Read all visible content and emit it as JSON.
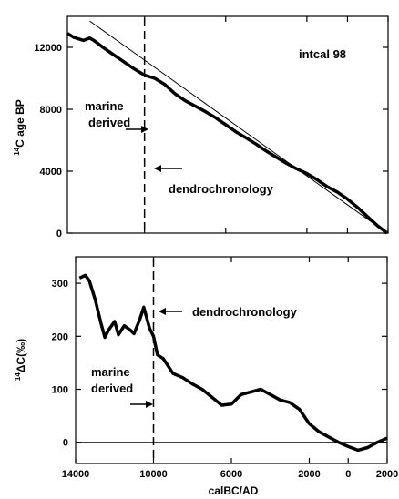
{
  "chart_data": [
    {
      "type": "line",
      "title": "",
      "ylabel": "14C age BP",
      "xlabel": "",
      "xlim": [
        -13800,
        2000
      ],
      "ylim": [
        0,
        14000
      ],
      "xtick_values": [
        -14000,
        -10000,
        -6000,
        -2000,
        0,
        2000
      ],
      "ytick_values": [
        0,
        4000,
        8000,
        12000
      ],
      "ytick_labels": [
        "0",
        "4000",
        "8000",
        "12000"
      ],
      "annotations": {
        "intcal": "intcal 98",
        "marine": [
          "marine",
          "derived"
        ],
        "dendro": "dendrochronology"
      },
      "dashed_x": -10000,
      "series": [
        {
          "name": "",
          "style": "thick",
          "x": [
            -13800,
            -13500,
            -13000,
            -12700,
            -12500,
            -12000,
            -11500,
            -11000,
            -10500,
            -10000,
            -9500,
            -9000,
            -8500,
            -8000,
            -7500,
            -7000,
            -6500,
            -6000,
            -5500,
            -5000,
            -4500,
            -4000,
            -3500,
            -3000,
            -2500,
            -2000,
            -1500,
            -1000,
            -500,
            0,
            500,
            1000,
            1500,
            1950
          ],
          "y": [
            12900,
            12650,
            12450,
            12600,
            12450,
            11950,
            11500,
            11050,
            10600,
            10200,
            10000,
            9600,
            9000,
            8550,
            8200,
            7850,
            7450,
            7000,
            6550,
            6150,
            5750,
            5300,
            4900,
            4500,
            4150,
            3850,
            3450,
            3000,
            2650,
            2200,
            1650,
            1050,
            450,
            0
          ]
        },
        {
          "name": "",
          "style": "thin",
          "x": [
            -12700,
            1950
          ],
          "y": [
            13700,
            0
          ]
        }
      ]
    },
    {
      "type": "line",
      "title": "",
      "ylabel": "14ΔC(‰)",
      "xlabel": "calBC/AD",
      "xlim": [
        -14000,
        2000
      ],
      "ylim": [
        -40,
        350
      ],
      "xtick_values": [
        -14000,
        -10000,
        -6000,
        -2000,
        0,
        2000
      ],
      "xtick_labels": [
        "14000",
        "10000",
        "6000",
        "2000",
        "0",
        "2000"
      ],
      "ytick_values": [
        0,
        100,
        200,
        300
      ],
      "ytick_labels": [
        "0",
        "100",
        "200",
        "300"
      ],
      "annotations": {
        "dendro": "dendrochronology",
        "marine": [
          "marine",
          "derived"
        ]
      },
      "dashed_x": -10000,
      "zero_line": 0,
      "series": [
        {
          "name": "",
          "style": "thick",
          "x": [
            -13800,
            -13500,
            -13300,
            -13000,
            -12700,
            -12500,
            -12300,
            -12000,
            -11800,
            -11500,
            -11200,
            -11000,
            -10700,
            -10500,
            -10200,
            -10000,
            -9800,
            -9500,
            -9000,
            -8500,
            -8000,
            -7500,
            -7000,
            -6500,
            -6000,
            -5500,
            -5000,
            -4500,
            -4000,
            -3500,
            -3000,
            -2500,
            -2000,
            -1500,
            -1000,
            -500,
            0,
            500,
            1000,
            1500,
            2000
          ],
          "y": [
            310,
            315,
            305,
            270,
            225,
            198,
            212,
            228,
            203,
            220,
            212,
            205,
            232,
            255,
            215,
            200,
            165,
            158,
            130,
            122,
            110,
            100,
            85,
            70,
            72,
            90,
            95,
            100,
            90,
            80,
            75,
            62,
            35,
            20,
            10,
            0,
            -8,
            -15,
            -10,
            0,
            8
          ]
        }
      ]
    }
  ]
}
